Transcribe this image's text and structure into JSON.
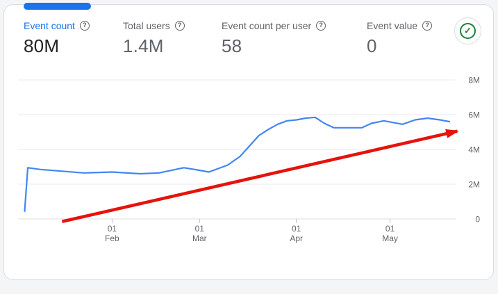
{
  "card": {
    "metrics": [
      {
        "label": "Event count",
        "value": "80M",
        "selected": true
      },
      {
        "label": "Total users",
        "value": "1.4M",
        "selected": false
      },
      {
        "label": "Event count per user",
        "value": "58",
        "selected": false
      },
      {
        "label": "Event value",
        "value": "0",
        "selected": false
      }
    ],
    "status_icon": "check-circle"
  },
  "colors": {
    "accent": "#1a73e8",
    "series_line": "#4285f4",
    "arrow": "#e5130b",
    "check_green": "#188038",
    "card_border": "#dadce0",
    "grid": "#e8eaed",
    "axis_line": "#dadce0",
    "tick": "#bdc1c6",
    "text_primary": "#202124",
    "text_secondary": "#5f6368"
  },
  "chart_data": {
    "type": "line",
    "title": "",
    "grid": true,
    "legend": "none",
    "y_axis": {
      "unit": "millions",
      "range": [
        0,
        8
      ],
      "labels_position": "right",
      "ticks": [
        {
          "v": 0,
          "label": "0"
        },
        {
          "v": 2,
          "label": "2M"
        },
        {
          "v": 4,
          "label": "4M"
        },
        {
          "v": 6,
          "label": "6M"
        },
        {
          "v": 8,
          "label": "8M"
        }
      ]
    },
    "x_axis": {
      "unit": "days-from-Jan-1",
      "range": [
        0,
        141
      ],
      "ticks": [
        {
          "pos": 31,
          "line1": "01",
          "line2": "Feb"
        },
        {
          "pos": 59,
          "line1": "01",
          "line2": "Mar"
        },
        {
          "pos": 90,
          "line1": "01",
          "line2": "Apr"
        },
        {
          "pos": 120,
          "line1": "01",
          "line2": "May"
        }
      ]
    },
    "series": [
      {
        "name": "Event count",
        "color": "#4285f4",
        "points": [
          [
            3,
            0.45
          ],
          [
            4,
            2.95
          ],
          [
            8,
            2.85
          ],
          [
            15,
            2.75
          ],
          [
            22,
            2.65
          ],
          [
            31,
            2.7
          ],
          [
            40,
            2.6
          ],
          [
            46,
            2.65
          ],
          [
            54,
            2.95
          ],
          [
            59,
            2.8
          ],
          [
            62,
            2.7
          ],
          [
            65,
            2.9
          ],
          [
            68,
            3.1
          ],
          [
            72,
            3.6
          ],
          [
            75,
            4.2
          ],
          [
            78,
            4.8
          ],
          [
            81,
            5.15
          ],
          [
            84,
            5.45
          ],
          [
            87,
            5.65
          ],
          [
            90,
            5.7
          ],
          [
            93,
            5.8
          ],
          [
            96,
            5.85
          ],
          [
            99,
            5.5
          ],
          [
            102,
            5.25
          ],
          [
            107,
            5.25
          ],
          [
            111,
            5.25
          ],
          [
            114,
            5.5
          ],
          [
            118,
            5.65
          ],
          [
            121,
            5.55
          ],
          [
            124,
            5.45
          ],
          [
            128,
            5.7
          ],
          [
            132,
            5.8
          ],
          [
            136,
            5.7
          ],
          [
            139,
            5.6
          ]
        ]
      }
    ],
    "annotations": [
      {
        "type": "trend-arrow",
        "color": "#e5130b",
        "from": [
          15,
          -0.15
        ],
        "to": [
          141.5,
          5.05
        ]
      }
    ]
  }
}
